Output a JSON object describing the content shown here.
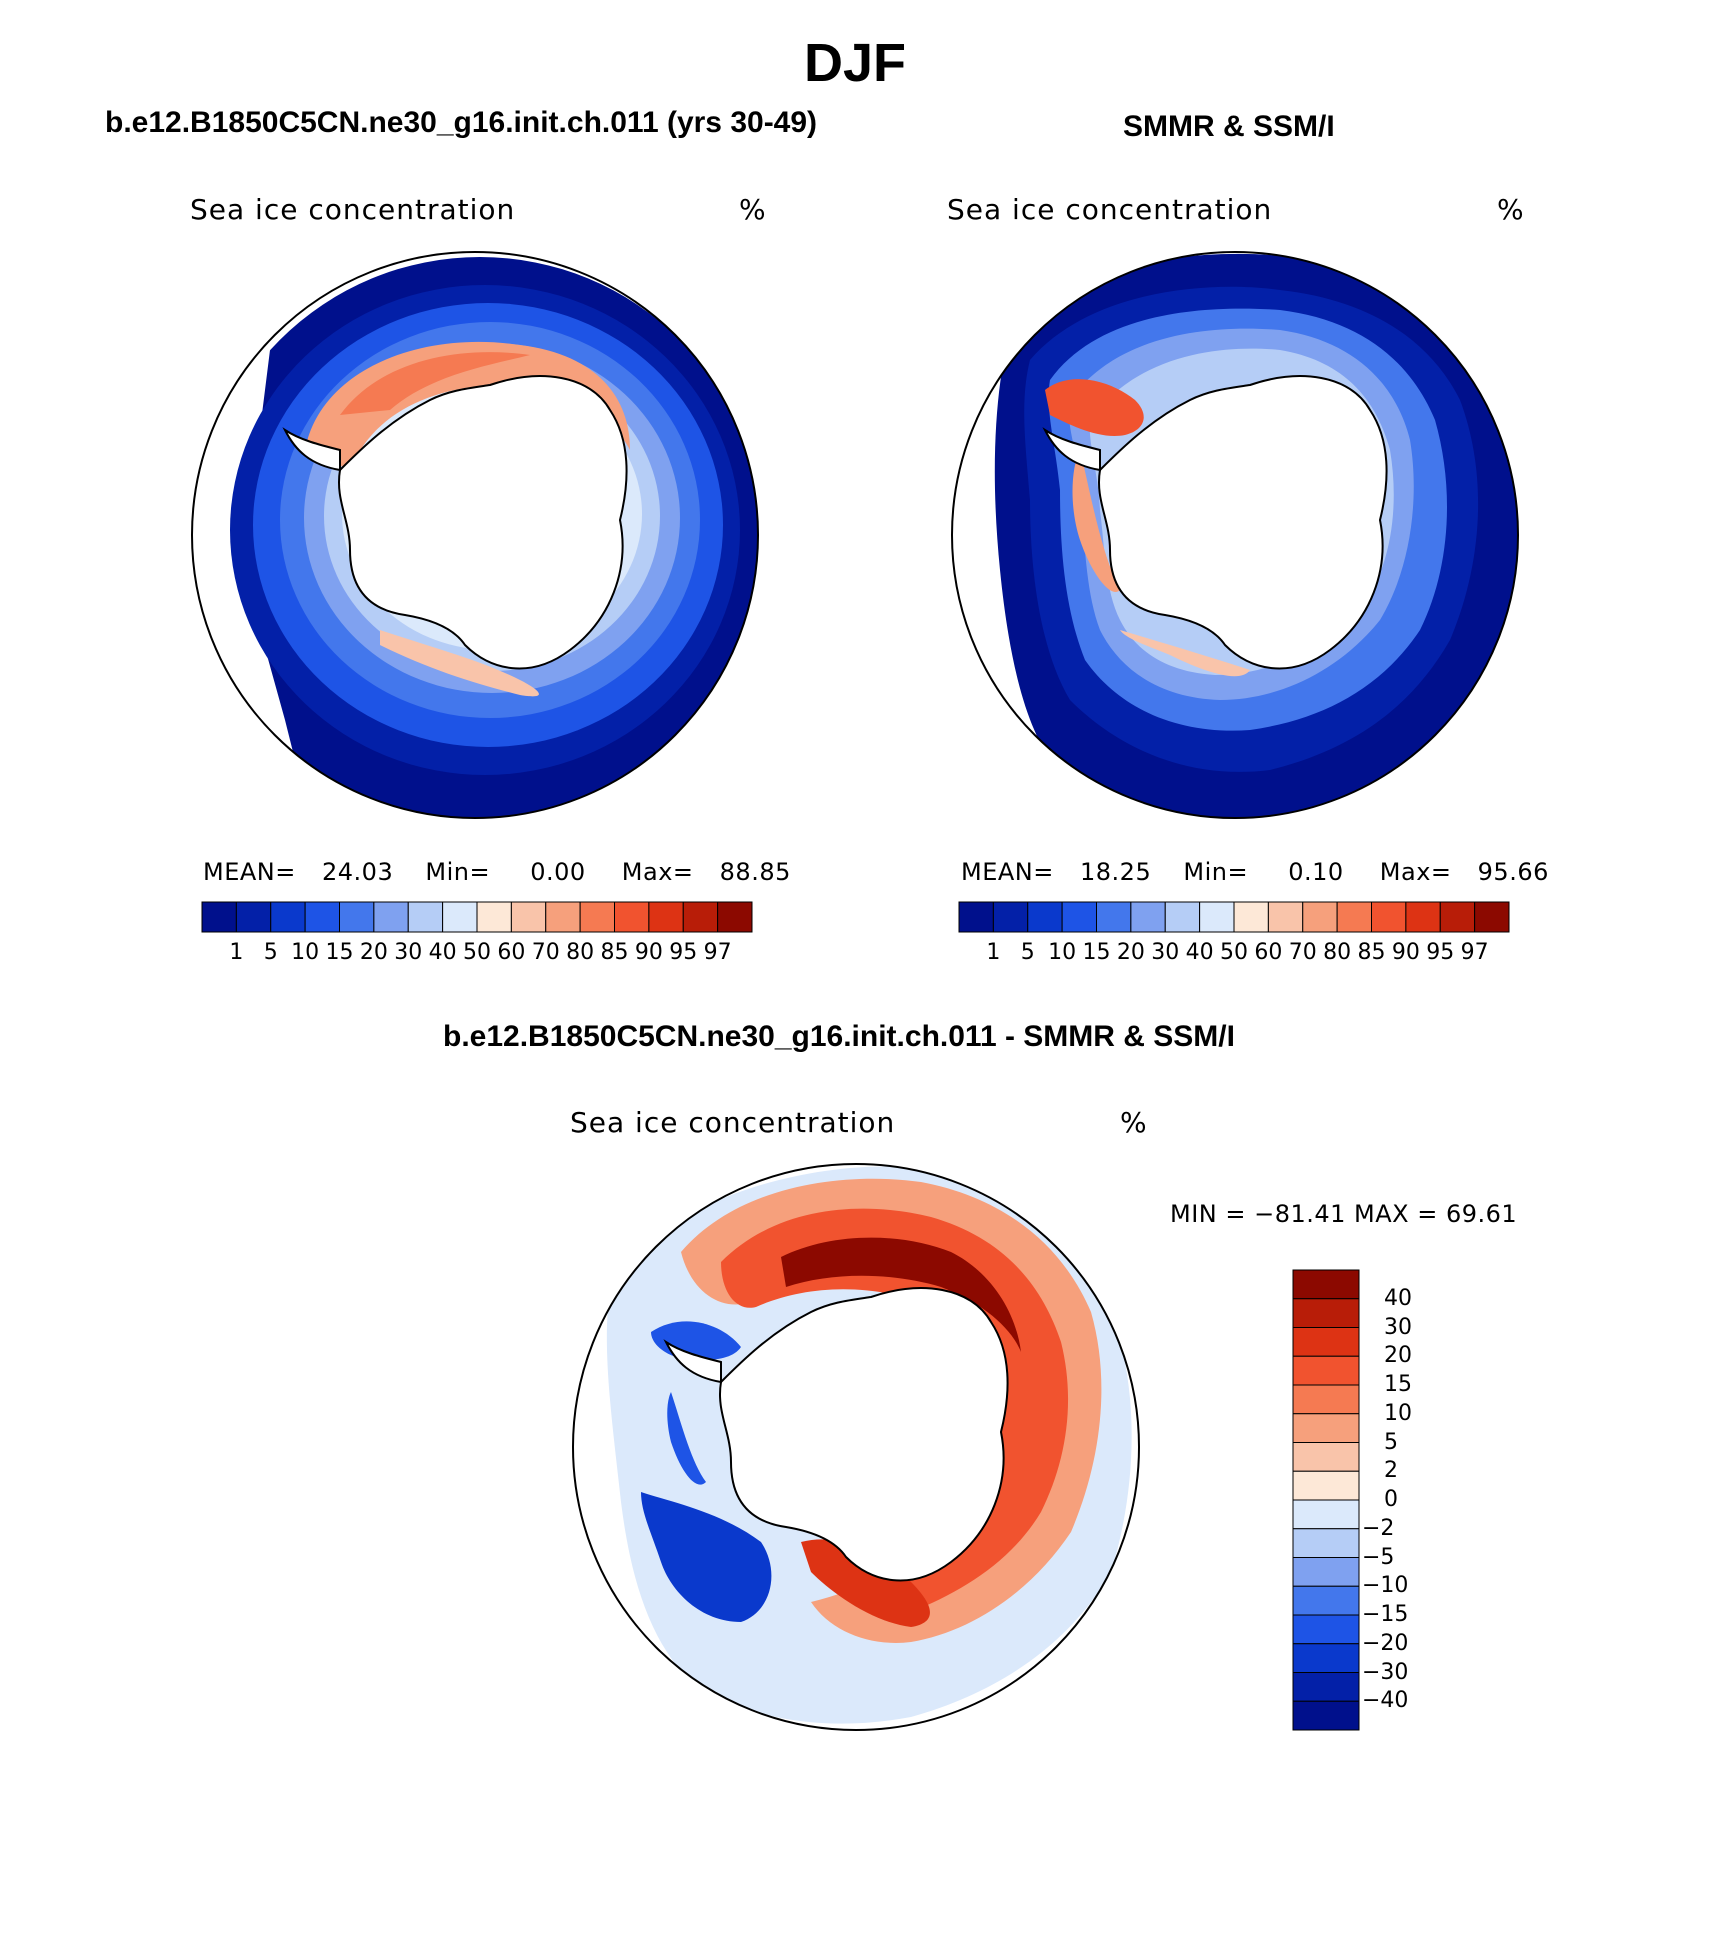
{
  "season": "DJF",
  "colors": {
    "conc": [
      "#00108c",
      "#0320a8",
      "#0a39cc",
      "#1e54e6",
      "#4377ec",
      "#7fa1f0",
      "#b5cdf6",
      "#dbe9fb",
      "#fde8d7",
      "#f9c4aa",
      "#f6a07c",
      "#f57a52",
      "#f1532f",
      "#dd3314",
      "#b81d08",
      "#8c0900"
    ],
    "diff": [
      "#00108c",
      "#0320a8",
      "#0a39cc",
      "#1e54e6",
      "#4377ec",
      "#7fa1f0",
      "#b5cdf6",
      "#dbe9fb",
      "#fde8d7",
      "#f9c4aa",
      "#f6a07c",
      "#f57a52",
      "#f1532f",
      "#dd3314",
      "#b81d08",
      "#8c0900"
    ],
    "coast": "#000000"
  },
  "panels": {
    "model": {
      "title": "b.e12.B1850C5CN.ne30_g16.init.ch.011 (yrs 30-49)",
      "label": "Sea ice concentration",
      "unit": "%",
      "stats_mean_label": "MEAN=",
      "stats_mean": "24.03",
      "stats_min_label": "Min=",
      "stats_min": "0.00",
      "stats_max_label": "Max=",
      "stats_max": "88.85"
    },
    "obs": {
      "title": "SMMR & SSM/I",
      "label": "Sea ice concentration",
      "unit": "%",
      "stats_mean_label": "MEAN=",
      "stats_mean": "18.25",
      "stats_min_label": "Min=",
      "stats_min": "0.10",
      "stats_max_label": "Max=",
      "stats_max": "95.66"
    },
    "diff": {
      "title": "b.e12.B1850C5CN.ne30_g16.init.ch.011 - SMMR & SSM/I",
      "label": "Sea ice concentration",
      "unit": "%",
      "minmax": "MIN = −81.41 MAX =   69.61"
    }
  },
  "conc_ticks": [
    "1",
    "5",
    "10",
    "15",
    "20",
    "30",
    "40",
    "50",
    "60",
    "70",
    "80",
    "85",
    "90",
    "95",
    "97"
  ],
  "diff_ticks": [
    "40",
    "30",
    "20",
    "15",
    "10",
    "5",
    "2",
    "0",
    "−2",
    "−5",
    "−10",
    "−15",
    "−20",
    "−30",
    "−40"
  ]
}
